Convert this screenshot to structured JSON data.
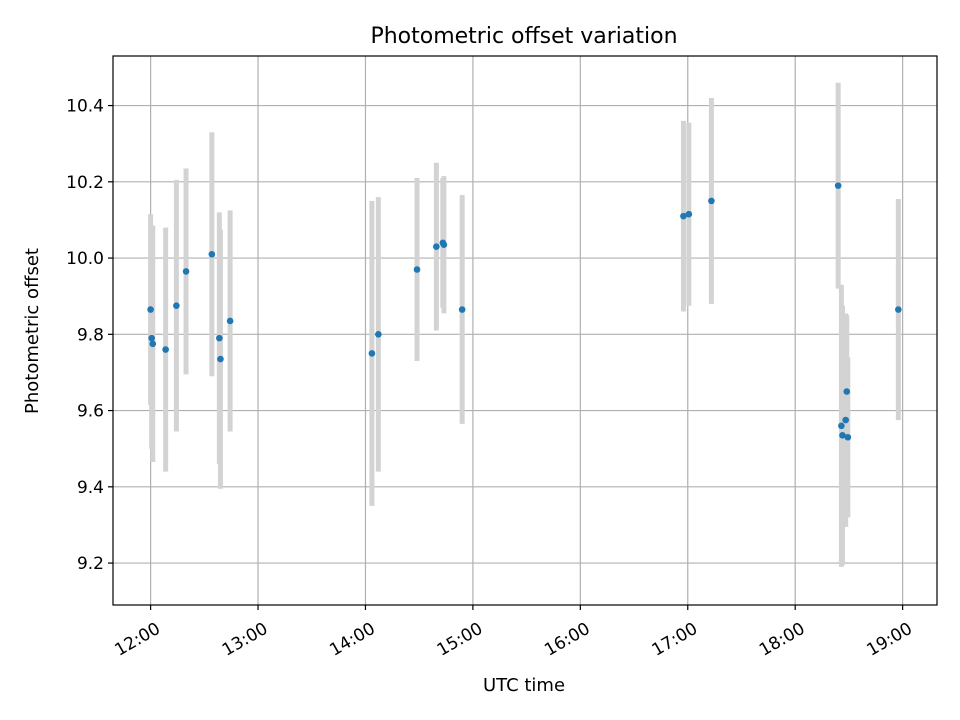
{
  "chart_data": {
    "type": "scatter",
    "title": "Photometric offset variation",
    "xlabel": "UTC time",
    "ylabel": "Photometric offset",
    "x_unit": "hours UTC",
    "xlim": [
      11.65,
      19.32
    ],
    "ylim": [
      9.09,
      10.53
    ],
    "x_ticks": [
      {
        "value": 12,
        "label": "12:00"
      },
      {
        "value": 13,
        "label": "13:00"
      },
      {
        "value": 14,
        "label": "14:00"
      },
      {
        "value": 15,
        "label": "15:00"
      },
      {
        "value": 16,
        "label": "16:00"
      },
      {
        "value": 17,
        "label": "17:00"
      },
      {
        "value": 18,
        "label": "18:00"
      },
      {
        "value": 19,
        "label": "19:00"
      }
    ],
    "y_ticks": [
      {
        "value": 9.2,
        "label": "9.2"
      },
      {
        "value": 9.4,
        "label": "9.4"
      },
      {
        "value": 9.6,
        "label": "9.6"
      },
      {
        "value": 9.8,
        "label": "9.8"
      },
      {
        "value": 10.0,
        "label": "10.0"
      },
      {
        "value": 10.2,
        "label": "10.2"
      },
      {
        "value": 10.4,
        "label": "10.4"
      }
    ],
    "grid": true,
    "colors": {
      "points": "#1f77b4",
      "errorbars": "#d3d3d3",
      "grid": "#b0b0b0"
    },
    "points": [
      {
        "x": 12.0,
        "y": 9.865,
        "err": 0.25
      },
      {
        "x": 12.01,
        "y": 9.79,
        "err": 0.29
      },
      {
        "x": 12.02,
        "y": 9.775,
        "err": 0.31
      },
      {
        "x": 12.14,
        "y": 9.76,
        "err": 0.32
      },
      {
        "x": 12.24,
        "y": 9.875,
        "err": 0.33
      },
      {
        "x": 12.33,
        "y": 9.965,
        "err": 0.27
      },
      {
        "x": 12.57,
        "y": 10.01,
        "err": 0.32
      },
      {
        "x": 12.64,
        "y": 9.79,
        "err": 0.33
      },
      {
        "x": 12.65,
        "y": 9.735,
        "err": 0.34
      },
      {
        "x": 12.74,
        "y": 9.835,
        "err": 0.29
      },
      {
        "x": 14.06,
        "y": 9.75,
        "err": 0.4
      },
      {
        "x": 14.12,
        "y": 9.8,
        "err": 0.36
      },
      {
        "x": 14.48,
        "y": 9.97,
        "err": 0.24
      },
      {
        "x": 14.66,
        "y": 10.03,
        "err": 0.22
      },
      {
        "x": 14.72,
        "y": 10.04,
        "err": 0.17
      },
      {
        "x": 14.73,
        "y": 10.035,
        "err": 0.18
      },
      {
        "x": 14.9,
        "y": 9.865,
        "err": 0.3
      },
      {
        "x": 16.96,
        "y": 10.11,
        "err": 0.25
      },
      {
        "x": 17.01,
        "y": 10.115,
        "err": 0.24
      },
      {
        "x": 17.22,
        "y": 10.15,
        "err": 0.27
      },
      {
        "x": 18.4,
        "y": 10.19,
        "err": 0.27
      },
      {
        "x": 18.43,
        "y": 9.56,
        "err": 0.37
      },
      {
        "x": 18.44,
        "y": 9.535,
        "err": 0.34
      },
      {
        "x": 18.47,
        "y": 9.575,
        "err": 0.28
      },
      {
        "x": 18.48,
        "y": 9.65,
        "err": 0.2
      },
      {
        "x": 18.49,
        "y": 9.53,
        "err": 0.21
      },
      {
        "x": 18.96,
        "y": 9.865,
        "err": 0.29
      }
    ]
  }
}
